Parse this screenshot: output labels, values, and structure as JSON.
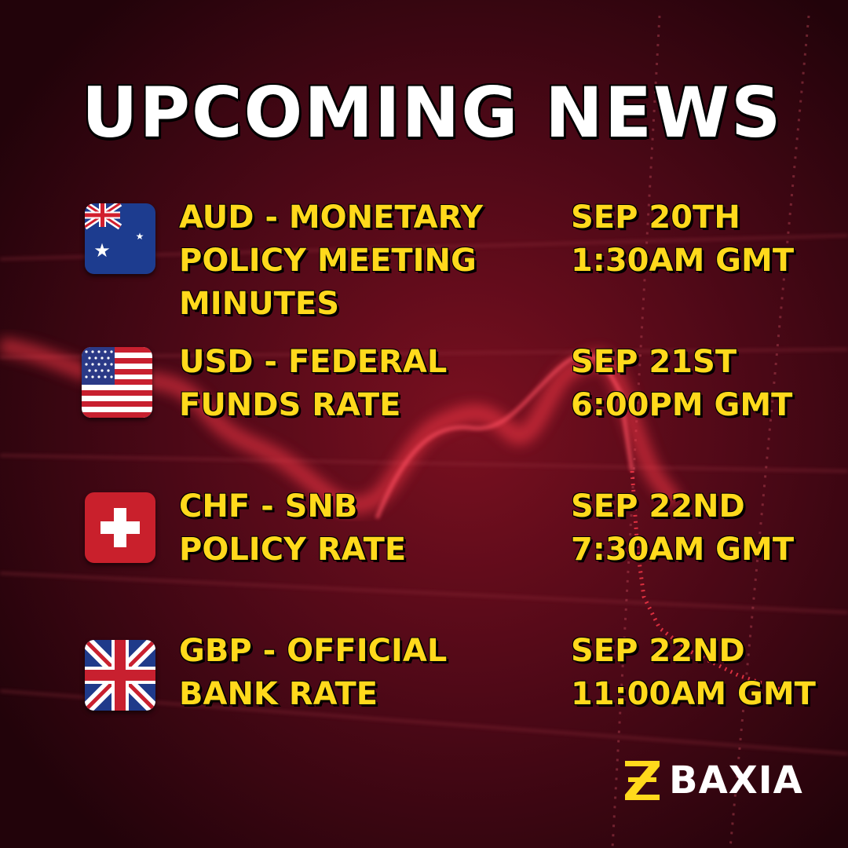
{
  "title": "UPCOMING NEWS",
  "events": [
    {
      "flag": "australia-flag-icon",
      "event": "AUD - MONETARY\nPOLICY MEETING\nMINUTES",
      "date": "SEP 20TH",
      "time": "1:30AM GMT"
    },
    {
      "flag": "usa-flag-icon",
      "event": "USD - FEDERAL\nFUNDS RATE",
      "date": "SEP 21ST",
      "time": "6:00PM GMT"
    },
    {
      "flag": "switzerland-flag-icon",
      "event": "CHF - SNB\nPOLICY RATE",
      "date": "SEP 22ND",
      "time": "7:30AM GMT"
    },
    {
      "flag": "uk-flag-icon",
      "event": "GBP - OFFICIAL\nBANK RATE",
      "date": "SEP 22ND",
      "time": "11:00AM GMT"
    }
  ],
  "brand": {
    "name": "BAXIA",
    "mark": "baxia-logo-icon"
  },
  "colors": {
    "background": "#3a0610",
    "accent": "#ffd91c",
    "title": "#ffffff",
    "chart_red": "#ff3a4a"
  }
}
